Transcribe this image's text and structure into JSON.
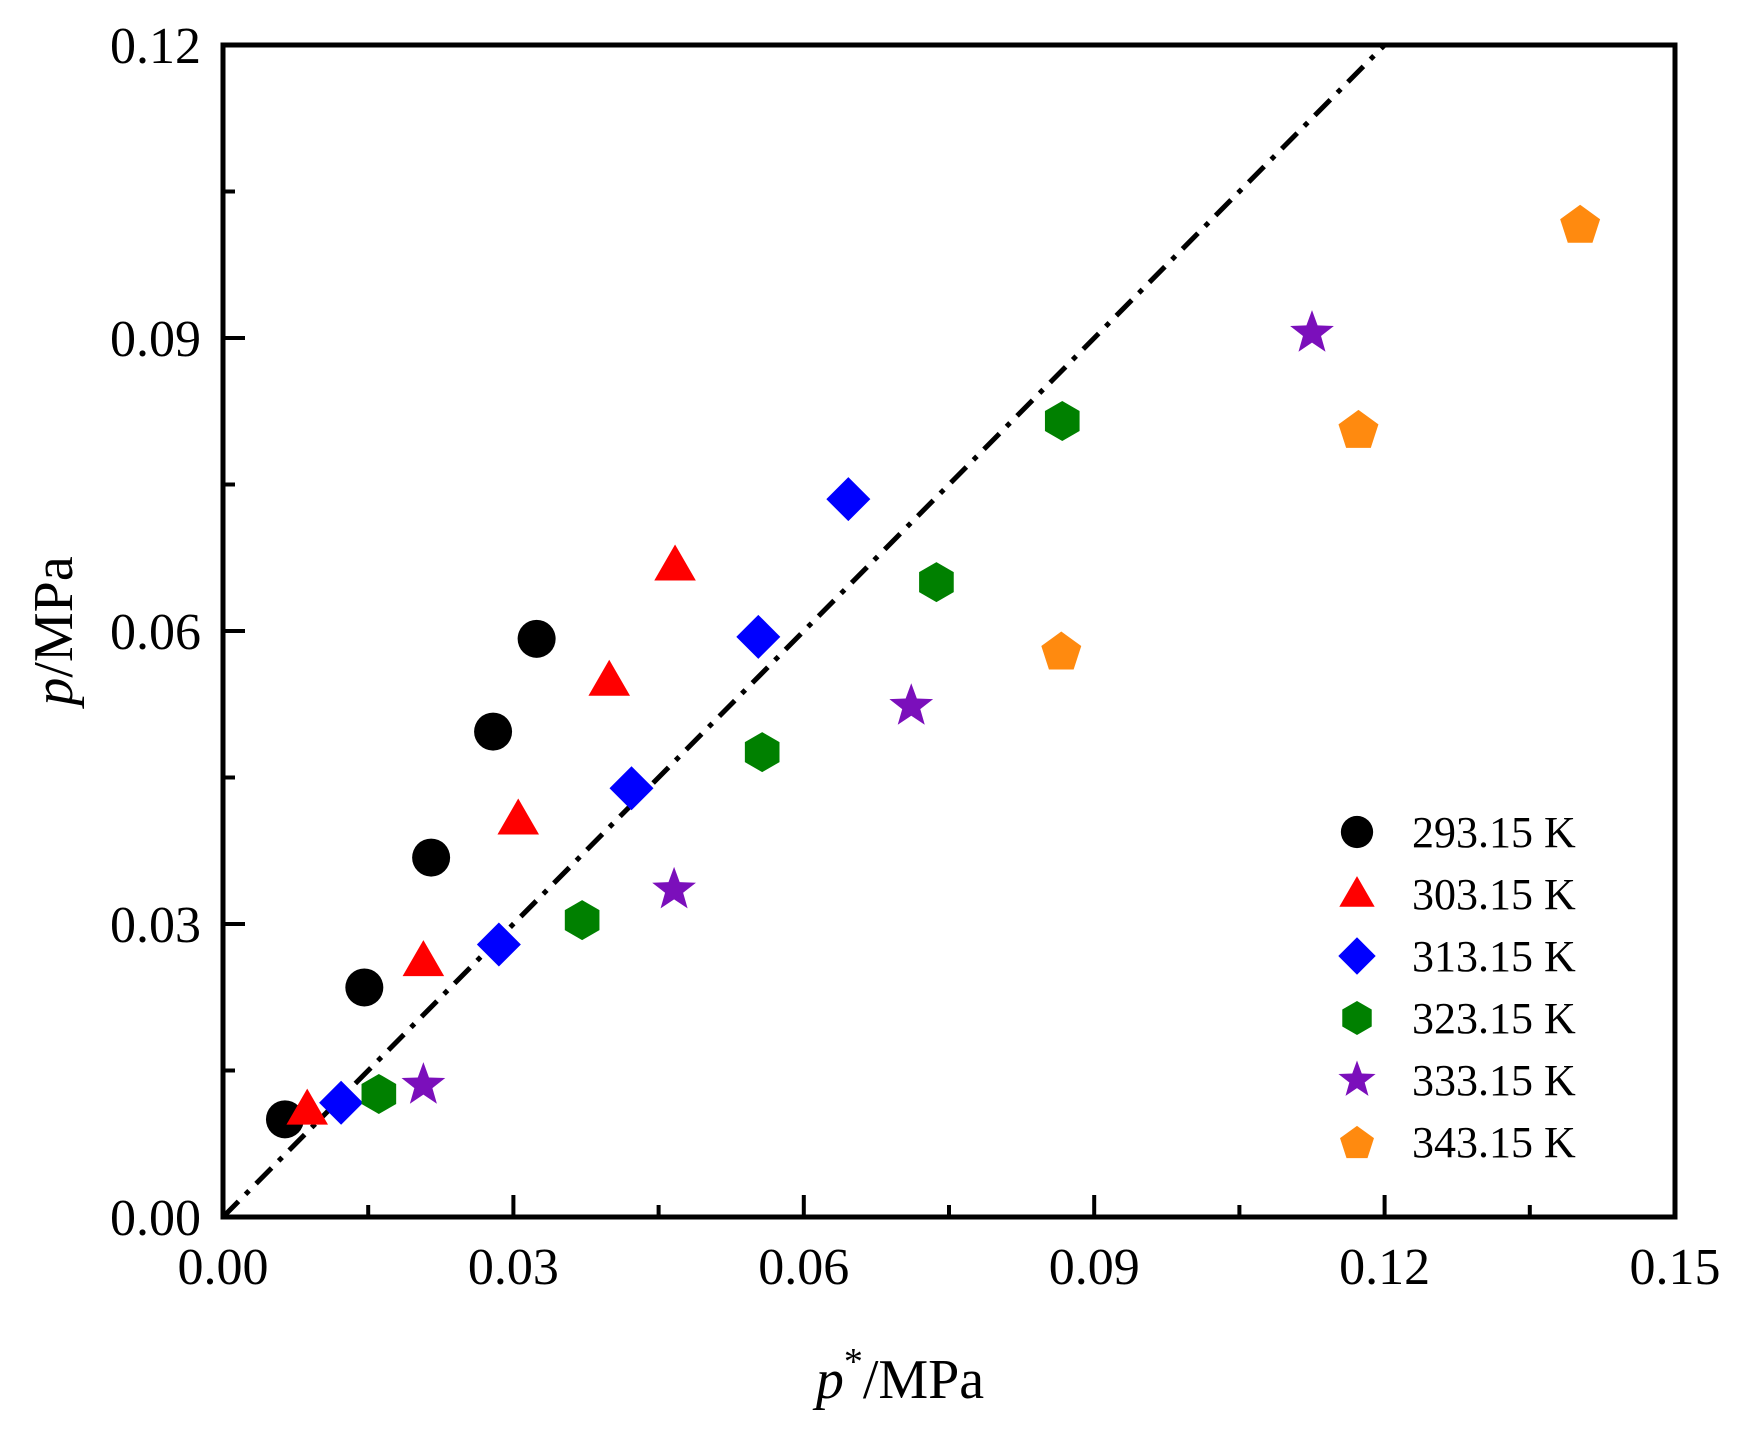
{
  "chart_data": {
    "type": "scatter",
    "xlabel_var": "p",
    "xlabel_sup": "*",
    "xlabel_unit": "/MPa",
    "ylabel_var": "p",
    "ylabel_unit": "/MPa",
    "xlim": [
      0,
      0.15
    ],
    "ylim": [
      0,
      0.12
    ],
    "xticks": [
      "0.00",
      "0.03",
      "0.06",
      "0.09",
      "0.12",
      "0.15"
    ],
    "yticks": [
      "0.00",
      "0.03",
      "0.06",
      "0.09",
      "0.12"
    ],
    "xtick_values": [
      0,
      0.03,
      0.06,
      0.09,
      0.12,
      0.15
    ],
    "ytick_values": [
      0,
      0.03,
      0.06,
      0.09,
      0.12
    ],
    "reference_line": {
      "style": "dash-dot",
      "color": "#000000",
      "points": [
        [
          0,
          0
        ],
        [
          0.12,
          0.12
        ]
      ]
    },
    "legend_position": "bottom-right",
    "series": [
      {
        "name": "293.15 K",
        "marker": "circle",
        "color": "#000000",
        "x": [
          0.0064,
          0.0146,
          0.0215,
          0.0279,
          0.0324
        ],
        "y": [
          0.01,
          0.0235,
          0.0368,
          0.0497,
          0.0592
        ]
      },
      {
        "name": "303.15 K",
        "marker": "triangle",
        "color": "#ff0000",
        "x": [
          0.0087,
          0.0207,
          0.0305,
          0.0399,
          0.0467
        ],
        "y": [
          0.011,
          0.0262,
          0.0407,
          0.0549,
          0.0667
        ]
      },
      {
        "name": "313.15 K",
        "marker": "diamond",
        "color": "#0000ff",
        "x": [
          0.0122,
          0.0285,
          0.0422,
          0.0553,
          0.0646
        ],
        "y": [
          0.0117,
          0.0279,
          0.0439,
          0.0594,
          0.0735
        ]
      },
      {
        "name": "323.15 K",
        "marker": "hexagon",
        "color": "#008000",
        "x": [
          0.0161,
          0.0371,
          0.0557,
          0.0737,
          0.0867
        ],
        "y": [
          0.0126,
          0.0304,
          0.0476,
          0.065,
          0.0815
        ]
      },
      {
        "name": "333.15 K",
        "marker": "star",
        "color": "#7b0fbb",
        "x": [
          0.0207,
          0.0466,
          0.0711,
          0.1125
        ],
        "y": [
          0.0135,
          0.0335,
          0.0523,
          0.0905
        ]
      },
      {
        "name": "343.15 K",
        "marker": "pentagon",
        "color": "#ff8a0f",
        "x": [
          0.0866,
          0.1173,
          0.1402
        ],
        "y": [
          0.058,
          0.0807,
          0.1017
        ]
      }
    ]
  }
}
